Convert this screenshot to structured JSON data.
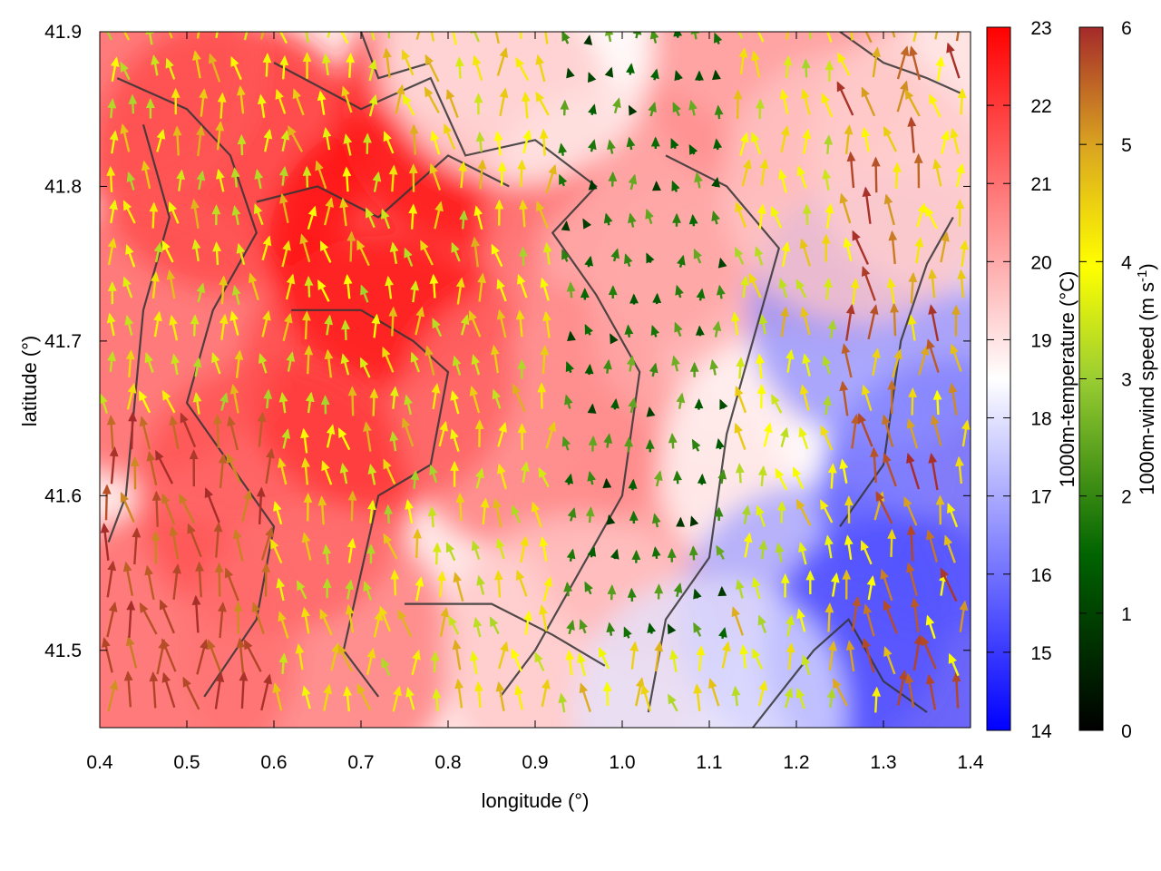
{
  "chart_data": {
    "type": "heatmap",
    "title": "",
    "xlabel": "longitude (°)",
    "ylabel": "latitude (°)",
    "xlim": [
      0.4,
      1.4
    ],
    "ylim": [
      41.45,
      41.9
    ],
    "x_ticks": [
      "0.4",
      "0.5",
      "0.6",
      "0.7",
      "0.8",
      "0.9",
      "1.0",
      "1.1",
      "1.2",
      "1.3",
      "1.4"
    ],
    "y_ticks": [
      "41.5",
      "41.6",
      "41.7",
      "41.8",
      "41.9"
    ],
    "temperature_colorbar": {
      "label": "1000m-temperature (°C)",
      "range": [
        14,
        23
      ],
      "ticks": [
        "14",
        "15",
        "16",
        "17",
        "18",
        "19",
        "20",
        "21",
        "22",
        "23"
      ],
      "colors": [
        "#0000ff",
        "#ffffff",
        "#ff0000"
      ]
    },
    "wind_colorbar": {
      "label_main": "1000m-wind speed (m s",
      "label_sup": "-1",
      "label_end": ")",
      "range": [
        0,
        6
      ],
      "ticks": [
        "0",
        "1",
        "2",
        "3",
        "4",
        "5",
        "6"
      ],
      "colors": [
        "#000000",
        "#006400",
        "#9acd32",
        "#ffff00",
        "#daa520",
        "#a52a2a"
      ]
    },
    "temperature_field": [
      {
        "lon": 0.55,
        "lat": 41.82,
        "temp": 22.5
      },
      {
        "lon": 0.75,
        "lat": 41.76,
        "temp": 22.8
      },
      {
        "lon": 0.83,
        "lat": 41.85,
        "temp": 22.5
      },
      {
        "lon": 0.72,
        "lat": 41.68,
        "temp": 22.5
      },
      {
        "lon": 0.6,
        "lat": 41.6,
        "temp": 22.0
      },
      {
        "lon": 0.45,
        "lat": 41.7,
        "temp": 21.5
      },
      {
        "lon": 0.47,
        "lat": 41.5,
        "temp": 21.5
      },
      {
        "lon": 0.65,
        "lat": 41.5,
        "temp": 21.0
      },
      {
        "lon": 0.9,
        "lat": 41.65,
        "temp": 21.0
      },
      {
        "lon": 1.0,
        "lat": 41.78,
        "temp": 20.5
      },
      {
        "lon": 1.05,
        "lat": 41.58,
        "temp": 20.5
      },
      {
        "lon": 0.95,
        "lat": 41.5,
        "temp": 19.5
      },
      {
        "lon": 1.12,
        "lat": 41.72,
        "temp": 20.0
      },
      {
        "lon": 1.18,
        "lat": 41.88,
        "temp": 20.5
      },
      {
        "lon": 1.2,
        "lat": 41.62,
        "temp": 18.5
      },
      {
        "lon": 1.22,
        "lat": 41.52,
        "temp": 16.8
      },
      {
        "lon": 1.32,
        "lat": 41.5,
        "temp": 15.0
      },
      {
        "lon": 1.38,
        "lat": 41.6,
        "temp": 15.5
      },
      {
        "lon": 1.3,
        "lat": 41.72,
        "temp": 16.5
      },
      {
        "lon": 1.37,
        "lat": 41.82,
        "temp": 19.0
      },
      {
        "lon": 1.27,
        "lat": 41.8,
        "temp": 19.5
      },
      {
        "lon": 0.88,
        "lat": 41.89,
        "temp": 18.5
      },
      {
        "lon": 1.1,
        "lat": 41.46,
        "temp": 18.0
      },
      {
        "lon": 0.42,
        "lat": 41.88,
        "temp": 21.5
      }
    ]
  }
}
